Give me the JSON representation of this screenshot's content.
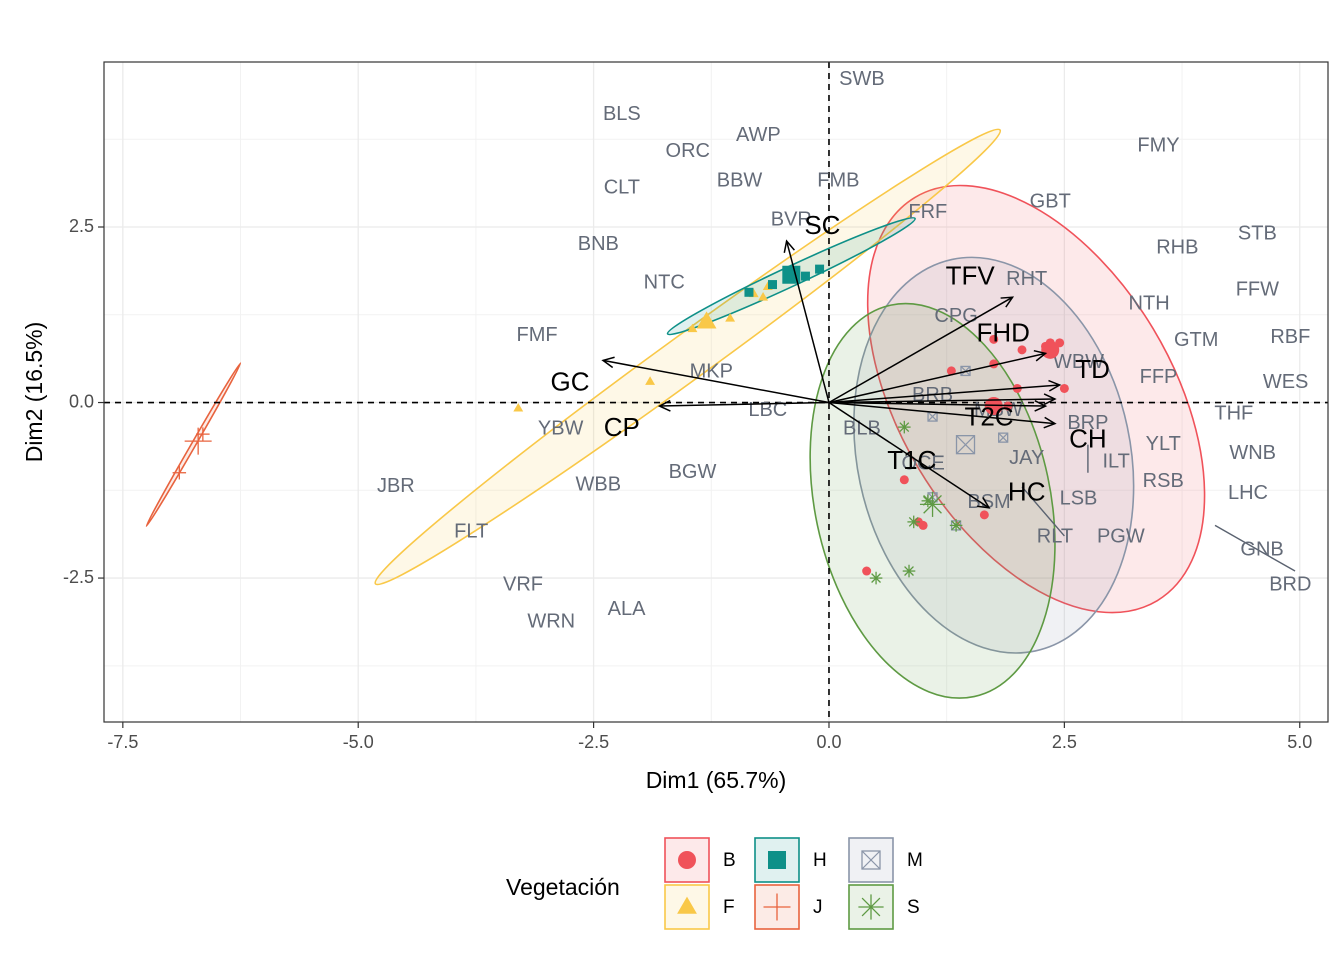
{
  "chart_data": {
    "type": "scatter",
    "title": "",
    "xlabel": "Dim1 (65.7%)",
    "ylabel": "Dim2 (16.5%)",
    "xlim": [
      -7.7,
      5.3
    ],
    "ylim": [
      -4.55,
      4.85
    ],
    "xticks": [
      -7.5,
      -5.0,
      -2.5,
      0.0,
      2.5,
      5.0
    ],
    "xtick_labels": [
      "-7.5",
      "-5.0",
      "-2.5",
      "0.0",
      "2.5",
      "5.0"
    ],
    "yticks": [
      -2.5,
      0.0,
      2.5
    ],
    "ytick_labels": [
      "-2.5",
      "0.0",
      "2.5"
    ],
    "grid": true,
    "legend": {
      "title": "Vegetación",
      "position": "bottom",
      "entries": [
        {
          "label": "B",
          "group": "B"
        },
        {
          "label": "F",
          "group": "F"
        },
        {
          "label": "H",
          "group": "H"
        },
        {
          "label": "J",
          "group": "J"
        },
        {
          "label": "M",
          "group": "M"
        },
        {
          "label": "S",
          "group": "S"
        }
      ]
    },
    "groups": {
      "B": {
        "color": "#F0525A",
        "shape": "circle"
      },
      "F": {
        "color": "#F9C848",
        "shape": "triangle"
      },
      "H": {
        "color": "#0E9088",
        "shape": "square"
      },
      "J": {
        "color": "#E8633E",
        "shape": "plus"
      },
      "M": {
        "color": "#8A95A8",
        "shape": "boxx"
      },
      "S": {
        "color": "#5E9A43",
        "shape": "star"
      }
    },
    "ellipses": [
      {
        "group": "B",
        "cx": 2.2,
        "cy": 0.05,
        "rx": 1.45,
        "ry": 3.35,
        "angle": 31
      },
      {
        "group": "F",
        "cx": -1.5,
        "cy": 0.65,
        "rx": 4.1,
        "ry": 0.32,
        "angle": 36
      },
      {
        "group": "H",
        "cx": -0.4,
        "cy": 1.8,
        "rx": 1.45,
        "ry": 0.14,
        "angle": 25
      },
      {
        "group": "J",
        "cx": -6.75,
        "cy": -0.6,
        "rx": 1.0,
        "ry": 0.03,
        "angle": 60
      },
      {
        "group": "M",
        "cx": 1.75,
        "cy": -0.75,
        "rx": 1.45,
        "ry": 2.85,
        "angle": 12
      },
      {
        "group": "S",
        "cx": 1.1,
        "cy": -1.4,
        "rx": 1.25,
        "ry": 2.85,
        "angle": 12
      }
    ],
    "points": [
      {
        "group": "B",
        "x": 1.3,
        "y": 0.45,
        "size": 1
      },
      {
        "group": "B",
        "x": 1.75,
        "y": 0.55,
        "size": 1
      },
      {
        "group": "B",
        "x": 1.75,
        "y": 0.9,
        "size": 1
      },
      {
        "group": "B",
        "x": 2.05,
        "y": 0.75,
        "size": 1
      },
      {
        "group": "B",
        "x": 2.3,
        "y": 0.8,
        "size": 1
      },
      {
        "group": "B",
        "x": 2.35,
        "y": 0.85,
        "size": 1
      },
      {
        "group": "B",
        "x": 2.45,
        "y": 0.85,
        "size": 1
      },
      {
        "group": "B",
        "x": 2.5,
        "y": 0.2,
        "size": 1
      },
      {
        "group": "B",
        "x": 2.0,
        "y": 0.2,
        "size": 1
      },
      {
        "group": "B",
        "x": 1.9,
        "y": -0.05,
        "size": 1
      },
      {
        "group": "B",
        "x": 1.75,
        "y": -0.05,
        "size": 2
      },
      {
        "group": "B",
        "x": 0.8,
        "y": -1.1,
        "size": 1
      },
      {
        "group": "B",
        "x": 0.95,
        "y": -1.7,
        "size": 1
      },
      {
        "group": "B",
        "x": 1.0,
        "y": -1.75,
        "size": 1
      },
      {
        "group": "B",
        "x": 1.65,
        "y": -1.6,
        "size": 1
      },
      {
        "group": "B",
        "x": 0.4,
        "y": -2.4,
        "size": 1
      },
      {
        "group": "B",
        "x": 2.35,
        "y": 0.75,
        "size": 2
      },
      {
        "group": "F",
        "x": -1.3,
        "y": 1.15,
        "size": 2
      },
      {
        "group": "F",
        "x": -1.45,
        "y": 1.05,
        "size": 1
      },
      {
        "group": "F",
        "x": -1.05,
        "y": 1.2,
        "size": 1
      },
      {
        "group": "F",
        "x": -0.8,
        "y": 1.55,
        "size": 1
      },
      {
        "group": "F",
        "x": -0.65,
        "y": 1.65,
        "size": 1
      },
      {
        "group": "F",
        "x": -0.7,
        "y": 1.5,
        "size": 1
      },
      {
        "group": "F",
        "x": -1.9,
        "y": 0.3,
        "size": 1
      },
      {
        "group": "F",
        "x": -3.3,
        "y": -0.08,
        "size": 1
      },
      {
        "group": "H",
        "x": -0.85,
        "y": 1.57,
        "size": 1
      },
      {
        "group": "H",
        "x": -0.6,
        "y": 1.68,
        "size": 1
      },
      {
        "group": "H",
        "x": -0.4,
        "y": 1.82,
        "size": 2
      },
      {
        "group": "H",
        "x": -0.25,
        "y": 1.8,
        "size": 1
      },
      {
        "group": "H",
        "x": -0.1,
        "y": 1.9,
        "size": 1
      },
      {
        "group": "J",
        "x": -6.65,
        "y": -0.45,
        "size": 1
      },
      {
        "group": "J",
        "x": -6.7,
        "y": -0.55,
        "size": 2
      },
      {
        "group": "J",
        "x": -6.9,
        "y": -1.0,
        "size": 1
      },
      {
        "group": "M",
        "x": 1.45,
        "y": 0.45,
        "size": 1
      },
      {
        "group": "M",
        "x": 1.1,
        "y": -0.2,
        "size": 1
      },
      {
        "group": "M",
        "x": 1.85,
        "y": -0.5,
        "size": 1
      },
      {
        "group": "M",
        "x": 1.45,
        "y": -0.6,
        "size": 2
      },
      {
        "group": "M",
        "x": 1.1,
        "y": -1.35,
        "size": 1
      },
      {
        "group": "M",
        "x": 1.35,
        "y": -1.75,
        "size": 1
      },
      {
        "group": "S",
        "x": 0.8,
        "y": -0.35,
        "size": 1
      },
      {
        "group": "S",
        "x": 1.05,
        "y": -1.4,
        "size": 1
      },
      {
        "group": "S",
        "x": 1.1,
        "y": -1.45,
        "size": 2
      },
      {
        "group": "S",
        "x": 0.9,
        "y": -1.7,
        "size": 1
      },
      {
        "group": "S",
        "x": 1.35,
        "y": -1.75,
        "size": 1
      },
      {
        "group": "S",
        "x": 0.5,
        "y": -2.5,
        "size": 1
      },
      {
        "group": "S",
        "x": 0.85,
        "y": -2.4,
        "size": 1
      }
    ],
    "variables": [
      {
        "label": "SC",
        "x": -0.45,
        "y": 2.3,
        "lx": -0.07,
        "ly": 2.5
      },
      {
        "label": "TFV",
        "x": 1.95,
        "y": 1.5,
        "lx": 1.5,
        "ly": 1.78
      },
      {
        "label": "FHD",
        "x": 2.3,
        "y": 0.7,
        "lx": 1.85,
        "ly": 0.97
      },
      {
        "label": "TD",
        "x": 2.45,
        "y": 0.25,
        "lx": 2.8,
        "ly": 0.45
      },
      {
        "label": "T2C",
        "x": 2.4,
        "y": -0.3,
        "lx": 1.7,
        "ly": -0.23
      },
      {
        "label": "CH",
        "x": 2.4,
        "y": 0.05,
        "lx": 2.75,
        "ly": -0.54
      },
      {
        "label": "T1C",
        "x": 1.7,
        "y": -1.5,
        "lx": 0.88,
        "ly": -0.85
      },
      {
        "label": "HC",
        "x": 2.3,
        "y": -0.05,
        "lx": 2.1,
        "ly": -1.3
      },
      {
        "label": "GC",
        "x": -2.4,
        "y": 0.6,
        "lx": -2.75,
        "ly": 0.27
      },
      {
        "label": "CP",
        "x": -1.8,
        "y": -0.05,
        "lx": -2.2,
        "ly": -0.38
      }
    ],
    "label_segments": [
      {
        "x1": 2.05,
        "y1": -1.2,
        "x2": 2.5,
        "y2": -1.9
      },
      {
        "x1": 2.75,
        "y1": -0.6,
        "x2": 2.75,
        "y2": -1.0
      },
      {
        "x1": 4.1,
        "y1": -1.75,
        "x2": 4.95,
        "y2": -2.4
      }
    ],
    "labels": [
      {
        "text": "SWB",
        "x": 0.35,
        "y": 4.6
      },
      {
        "text": "BLS",
        "x": -2.2,
        "y": 4.1
      },
      {
        "text": "AWP",
        "x": -0.75,
        "y": 3.8
      },
      {
        "text": "ORC",
        "x": -1.5,
        "y": 3.57
      },
      {
        "text": "FMY",
        "x": 3.5,
        "y": 3.65
      },
      {
        "text": "BBW",
        "x": -0.95,
        "y": 3.15
      },
      {
        "text": "FMB",
        "x": 0.1,
        "y": 3.15
      },
      {
        "text": "CLT",
        "x": -2.2,
        "y": 3.05
      },
      {
        "text": "FRF",
        "x": 1.05,
        "y": 2.7
      },
      {
        "text": "GBT",
        "x": 2.35,
        "y": 2.85
      },
      {
        "text": "BVR",
        "x": -0.4,
        "y": 2.6
      },
      {
        "text": "STB",
        "x": 4.55,
        "y": 2.4
      },
      {
        "text": "BNB",
        "x": -2.45,
        "y": 2.25
      },
      {
        "text": "RHB",
        "x": 3.7,
        "y": 2.2
      },
      {
        "text": "RHT",
        "x": 2.1,
        "y": 1.75
      },
      {
        "text": "NTC",
        "x": -1.75,
        "y": 1.7
      },
      {
        "text": "FFW",
        "x": 4.55,
        "y": 1.6
      },
      {
        "text": "NTH",
        "x": 3.4,
        "y": 1.4
      },
      {
        "text": "CPG",
        "x": 1.35,
        "y": 1.22
      },
      {
        "text": "GTM",
        "x": 3.9,
        "y": 0.88
      },
      {
        "text": "RBF",
        "x": 4.9,
        "y": 0.92
      },
      {
        "text": "FMF",
        "x": -3.1,
        "y": 0.95
      },
      {
        "text": "WBW",
        "x": 2.65,
        "y": 0.57
      },
      {
        "text": "MKP",
        "x": -1.25,
        "y": 0.43
      },
      {
        "text": "FFP",
        "x": 3.5,
        "y": 0.35
      },
      {
        "text": "WES",
        "x": 4.85,
        "y": 0.28
      },
      {
        "text": "BRB",
        "x": 1.1,
        "y": 0.1
      },
      {
        "text": "THF",
        "x": 4.3,
        "y": -0.17
      },
      {
        "text": "LBC",
        "x": -0.65,
        "y": -0.12
      },
      {
        "text": "MBW",
        "x": 1.8,
        "y": -0.12
      },
      {
        "text": "BRP",
        "x": 2.75,
        "y": -0.3
      },
      {
        "text": "YBW",
        "x": -2.85,
        "y": -0.38
      },
      {
        "text": "BLB",
        "x": 0.35,
        "y": -0.38
      },
      {
        "text": "YLT",
        "x": 3.55,
        "y": -0.6
      },
      {
        "text": "WNB",
        "x": 4.5,
        "y": -0.73
      },
      {
        "text": "JAY",
        "x": 2.1,
        "y": -0.8
      },
      {
        "text": "ILT",
        "x": 3.05,
        "y": -0.85
      },
      {
        "text": "OCE",
        "x": 1.0,
        "y": -0.88
      },
      {
        "text": "BGW",
        "x": -1.45,
        "y": -1.0
      },
      {
        "text": "JBR",
        "x": -4.6,
        "y": -1.2
      },
      {
        "text": "WBB",
        "x": -2.45,
        "y": -1.18
      },
      {
        "text": "RSB",
        "x": 3.55,
        "y": -1.13
      },
      {
        "text": "LHC",
        "x": 4.45,
        "y": -1.3
      },
      {
        "text": "BSM",
        "x": 1.7,
        "y": -1.43
      },
      {
        "text": "LSB",
        "x": 2.65,
        "y": -1.38
      },
      {
        "text": "FLT",
        "x": -3.8,
        "y": -1.85
      },
      {
        "text": "RLT",
        "x": 2.4,
        "y": -1.92
      },
      {
        "text": "PGW",
        "x": 3.1,
        "y": -1.92
      },
      {
        "text": "GNB",
        "x": 4.6,
        "y": -2.1
      },
      {
        "text": "VRF",
        "x": -3.25,
        "y": -2.6
      },
      {
        "text": "BRD",
        "x": 4.9,
        "y": -2.6
      },
      {
        "text": "ALA",
        "x": -2.15,
        "y": -2.95
      },
      {
        "text": "WRN",
        "x": -2.95,
        "y": -3.13
      }
    ]
  }
}
